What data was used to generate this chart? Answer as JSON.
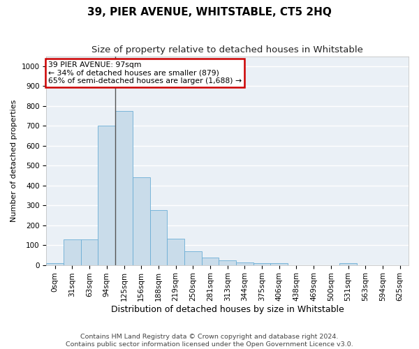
{
  "title": "39, PIER AVENUE, WHITSTABLE, CT5 2HQ",
  "subtitle": "Size of property relative to detached houses in Whitstable",
  "xlabel": "Distribution of detached houses by size in Whitstable",
  "ylabel": "Number of detached properties",
  "footer_line1": "Contains HM Land Registry data © Crown copyright and database right 2024.",
  "footer_line2": "Contains public sector information licensed under the Open Government Licence v3.0.",
  "bar_labels": [
    "0sqm",
    "31sqm",
    "63sqm",
    "94sqm",
    "125sqm",
    "156sqm",
    "188sqm",
    "219sqm",
    "250sqm",
    "281sqm",
    "313sqm",
    "344sqm",
    "375sqm",
    "406sqm",
    "438sqm",
    "469sqm",
    "500sqm",
    "531sqm",
    "563sqm",
    "594sqm",
    "625sqm"
  ],
  "bar_values": [
    8,
    128,
    128,
    700,
    775,
    440,
    275,
    133,
    70,
    38,
    23,
    12,
    10,
    8,
    0,
    0,
    0,
    8,
    0,
    0,
    0
  ],
  "bar_color": "#c9dcea",
  "bar_edge_color": "#6aadd5",
  "background_color": "#eaf0f6",
  "ylim": [
    0,
    1050
  ],
  "yticks": [
    0,
    100,
    200,
    300,
    400,
    500,
    600,
    700,
    800,
    900,
    1000
  ],
  "property_sqm": 97,
  "property_bar_index": 3,
  "annotation_line1": "39 PIER AVENUE: 97sqm",
  "annotation_line2": "← 34% of detached houses are smaller (879)",
  "annotation_line3": "65% of semi-detached houses are larger (1,688) →",
  "annotation_box_edgecolor": "#cc0000",
  "vline_color": "#555555",
  "title_fontsize": 11,
  "subtitle_fontsize": 9.5,
  "annotation_fontsize": 7.8,
  "tick_fontsize": 7.5,
  "xlabel_fontsize": 9,
  "ylabel_fontsize": 8,
  "footer_fontsize": 6.8
}
